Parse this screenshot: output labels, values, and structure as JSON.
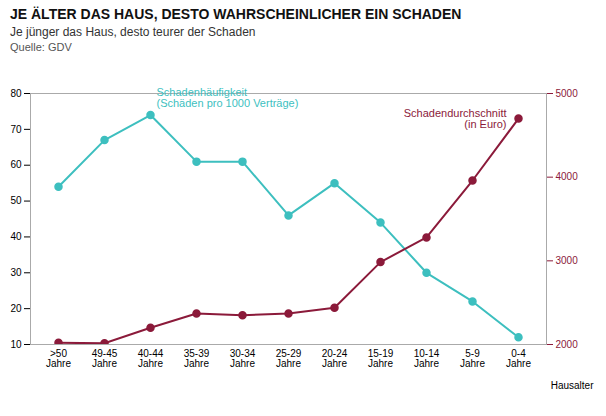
{
  "chart_data": {
    "type": "line",
    "title": "JE ÄLTER DAS HAUS, DESTO WAHRSCHEINLICHER EIN SCHADEN",
    "subtitle": "Je jünger das Haus, desto teurer der Schaden",
    "source": "Quelle: GDV",
    "xlabel": "Hausalter",
    "categories": [
      ">50\nJahre",
      "49-45\nJahre",
      "40-44\nJahre",
      "35-39\nJahre",
      "30-34\nJahre",
      "25-29\nJahre",
      "20-24\nJahre",
      "15-19\nJahre",
      "10-14\nJahre",
      "5-9\nJahre",
      "0-4\nJahre"
    ],
    "series": [
      {
        "name": "Schadenhäufigkeit\n(Schäden pro 1000 Verträge)",
        "color": "#3DBFBF",
        "marker": "circle",
        "values": [
          54,
          67,
          74,
          61,
          61,
          46,
          55,
          44,
          30,
          22,
          12
        ]
      },
      {
        "name": "Schadendurchschnitt\n(in Euro)",
        "color": "#8B1A3A",
        "marker": "circle",
        "axis": "y2",
        "values": [
          2020,
          2015,
          2200,
          2370,
          2350,
          2370,
          2440,
          2985,
          3280,
          3960,
          4700
        ]
      }
    ],
    "ylim": [
      10,
      80
    ],
    "yticks": [
      10,
      20,
      30,
      40,
      50,
      60,
      70,
      80
    ],
    "y2lim": [
      2000,
      5000
    ],
    "y2ticks": [
      2000,
      3000,
      4000,
      5000
    ],
    "grid": false
  }
}
